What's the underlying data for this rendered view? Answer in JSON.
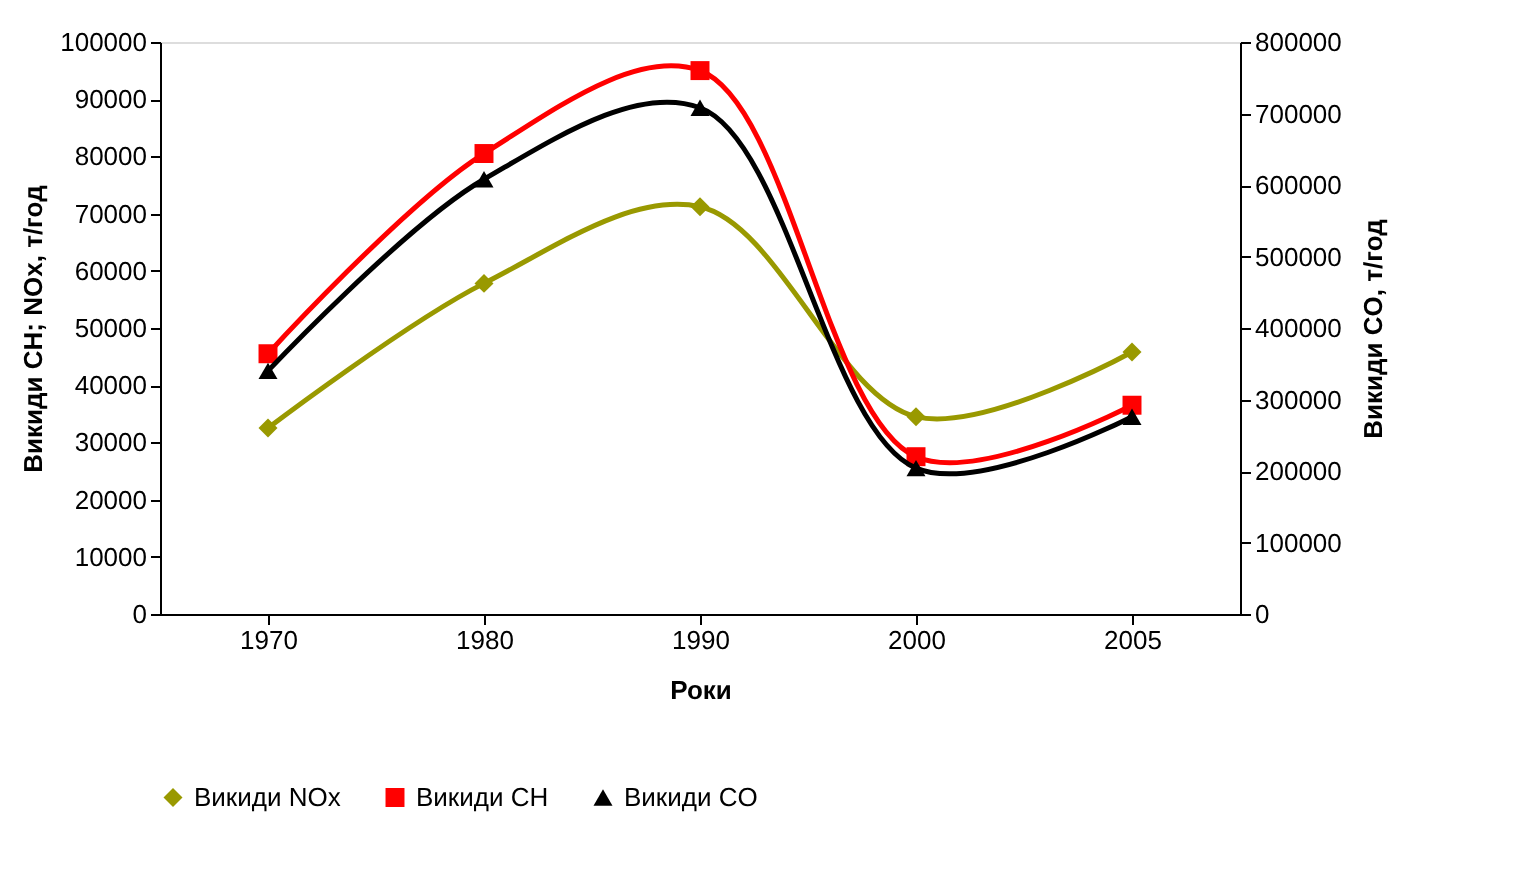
{
  "chart_data": {
    "type": "line",
    "xlabel": "Роки",
    "ylabel": "Викиди CH; NOx, т/год",
    "y2label": "Викиди CO, т/год",
    "categories": [
      "1970",
      "1980",
      "1990",
      "2000",
      "2005"
    ],
    "series": [
      {
        "name": "Викиди NOx",
        "color": "#999900",
        "marker": "diamond",
        "values": [
          32500,
          57800,
          71200,
          34500,
          45800
        ]
      },
      {
        "name": "Викиди CH",
        "color": "#ff0000",
        "marker": "square",
        "values": [
          45500,
          80500,
          95000,
          27500,
          36500
        ]
      },
      {
        "name": "Викиди CO",
        "color": "#000000",
        "marker": "triangle",
        "axis": "y2",
        "values": [
          340000,
          608000,
          708000,
          204000,
          276000
        ]
      }
    ],
    "ylim": [
      0,
      100000
    ],
    "yticks": [
      0,
      10000,
      20000,
      30000,
      40000,
      50000,
      60000,
      70000,
      80000,
      90000,
      100000
    ],
    "y2lim": [
      0,
      800000
    ],
    "y2ticks": [
      0,
      100000,
      200000,
      300000,
      400000,
      500000,
      600000,
      700000,
      800000
    ],
    "grid": false,
    "legend": "bottom",
    "line_style": "solid"
  }
}
